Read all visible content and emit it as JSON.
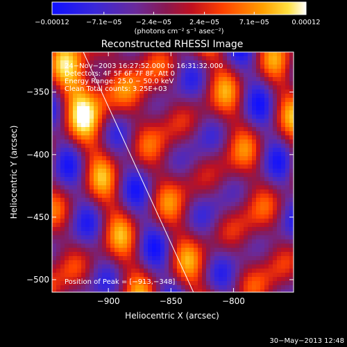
{
  "chart_data": {
    "type": "heatmap",
    "title": "Reconstructed RHESSI Image",
    "xlabel": "Heliocentric X (arcsec)",
    "ylabel": "Heliocentric Y (arcsec)",
    "xlim": [
      -945,
      -752
    ],
    "ylim": [
      -510,
      -318
    ],
    "x_ticks": [
      -900,
      -850,
      -800
    ],
    "x_tick_labels": [
      "−900",
      "−850",
      "−800"
    ],
    "y_ticks": [
      -500,
      -450,
      -400,
      -350
    ],
    "y_tick_labels": [
      "−500",
      "−450",
      "−400",
      "−350"
    ],
    "colorbar": {
      "range": [
        -0.00012,
        0.00012
      ],
      "ticks": [
        -0.00012,
        -7.1e-05,
        -2.4e-05,
        2.4e-05,
        7.1e-05,
        0.00012
      ],
      "tick_labels": [
        "−0.00012",
        "−7.1e−05",
        "−2.4e−05",
        "2.4e−05",
        "7.1e−05",
        "0.00012"
      ],
      "label": "(photons cm⁻² s⁻¹ asec⁻²)",
      "colors": [
        "#1515f0",
        "#6020a8",
        "#a01040",
        "#ff1800",
        "#ff9000",
        "#ffe020",
        "#ffffff"
      ]
    },
    "annotations": [
      "24−Nov−2003 16:27:52.000 to 16:31:32.000",
      "Detectors: 4F 5F 6F 7F 8F, Att 0",
      "Energy Range: 25.0 − 50.0 keV",
      "Clean   Total counts: 3.25E+03"
    ],
    "peak_label": "Position of Peak = [−913,−348]",
    "peak": [
      -913,
      -348
    ],
    "limb_line": [
      [
        -920,
        -318
      ],
      [
        -832,
        -510
      ]
    ]
  },
  "footer": {
    "timestamp": "30−May−2013 12:48"
  }
}
